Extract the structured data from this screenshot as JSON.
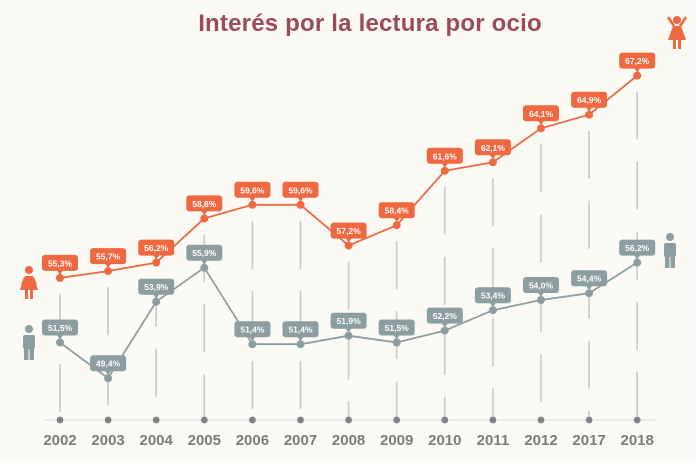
{
  "chart_data": {
    "type": "line",
    "title": "Interés por la lectura por ocio",
    "xlabel": "",
    "ylabel": "",
    "categories": [
      "2002",
      "2003",
      "2004",
      "2005",
      "2006",
      "2007",
      "2008",
      "2009",
      "2010",
      "2011",
      "2012",
      "2017",
      "2018"
    ],
    "ylim": [
      48,
      68
    ],
    "grid": false,
    "legend": "icons at line ends (female at left and top-right, male at left and right)",
    "series": [
      {
        "name": "Mujeres",
        "icon": "female-icon",
        "color": "#ef6840",
        "values": [
          55.3,
          55.7,
          56.2,
          58.8,
          59.6,
          59.6,
          57.2,
          58.4,
          61.6,
          62.1,
          64.1,
          64.9,
          67.2
        ],
        "labels": [
          "55,3%",
          "55,7%",
          "56,2%",
          "58,8%",
          "59,6%",
          "59,6%",
          "57,2%",
          "58,4%",
          "61,6%",
          "62,1%",
          "64,1%",
          "64,9%",
          "67,2%"
        ]
      },
      {
        "name": "Hombres",
        "icon": "male-icon",
        "color": "#8d9ea2",
        "values": [
          51.5,
          49.4,
          53.9,
          55.9,
          51.4,
          51.4,
          51.9,
          51.5,
          52.2,
          53.4,
          54.0,
          54.4,
          56.2
        ],
        "labels": [
          "51,5%",
          "49,4%",
          "53,9%",
          "55,9%",
          "51,4%",
          "51,4%",
          "51,9%",
          "51,5%",
          "52,2%",
          "53,4%",
          "54,0%",
          "54,4%",
          "56,2%"
        ]
      }
    ]
  },
  "colors": {
    "title": "#9c4a54",
    "axis_text": "#7b7b7b",
    "axis_dot": "#7e8386",
    "guide": "#c5cbcc",
    "background": "#fbfaf5"
  }
}
